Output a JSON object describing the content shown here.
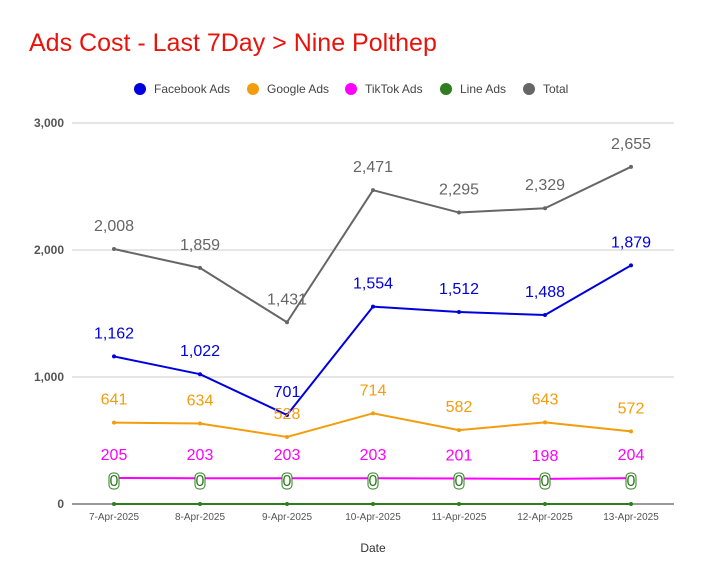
{
  "chart_data": {
    "type": "line",
    "title": "Ads Cost - Last 7Day > Nine Polthep",
    "xlabel": "Date",
    "ylabel": "",
    "categories": [
      "7-Apr-2025",
      "8-Apr-2025",
      "9-Apr-2025",
      "10-Apr-2025",
      "11-Apr-2025",
      "12-Apr-2025",
      "13-Apr-2025"
    ],
    "ylim": [
      0,
      3000
    ],
    "yticks": [
      0,
      1000,
      2000,
      3000
    ],
    "ytick_labels": [
      "0",
      "1,000",
      "2,000",
      "3,000"
    ],
    "grid": true,
    "legend_position": "top",
    "series": [
      {
        "name": "Facebook Ads",
        "color": "#0000dd",
        "values": [
          1162,
          1022,
          701,
          1554,
          1512,
          1488,
          1879
        ],
        "labels": [
          "1,162",
          "1,022",
          "701",
          "1,554",
          "1,512",
          "1,488",
          "1,879"
        ]
      },
      {
        "name": "Google Ads",
        "color": "#f29d0e",
        "values": [
          641,
          634,
          528,
          714,
          582,
          643,
          572
        ],
        "labels": [
          "641",
          "634",
          "528",
          "714",
          "582",
          "643",
          "572"
        ]
      },
      {
        "name": "TikTok Ads",
        "color": "#ff00ff",
        "values": [
          205,
          203,
          203,
          203,
          201,
          198,
          204
        ],
        "labels": [
          "205",
          "203",
          "203",
          "203",
          "201",
          "198",
          "204"
        ]
      },
      {
        "name": "Line Ads",
        "color": "#2e7d1e",
        "values": [
          0,
          0,
          0,
          0,
          0,
          0,
          0
        ],
        "labels": [
          "0",
          "0",
          "0",
          "0",
          "0",
          "0",
          "0"
        ]
      },
      {
        "name": "Total",
        "color": "#666666",
        "values": [
          2008,
          1859,
          1431,
          2471,
          2295,
          2329,
          2655
        ],
        "labels": [
          "2,008",
          "1,859",
          "1,431",
          "2,471",
          "2,295",
          "2,329",
          "2,655"
        ]
      }
    ]
  }
}
